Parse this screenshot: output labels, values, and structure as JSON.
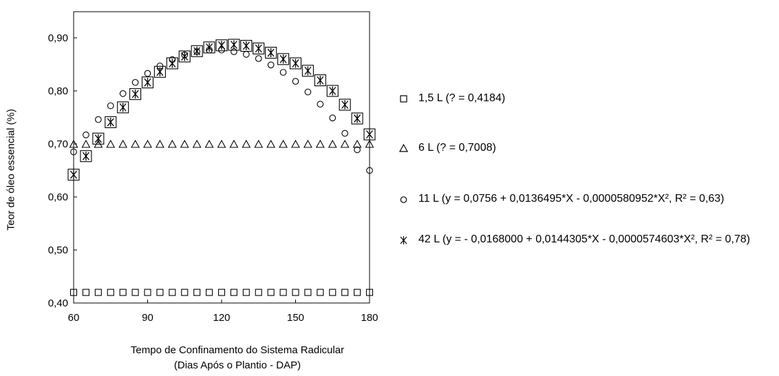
{
  "chart_data": {
    "type": "scatter",
    "xlabel_line1": "Tempo de Confinamento do Sistema Radicular",
    "xlabel_line2": "(Dias Após o Plantio - DAP)",
    "ylabel": "Teor de óleo essencial (%)",
    "xlim": [
      60,
      180
    ],
    "ylim": [
      0.4,
      0.95
    ],
    "xticks": [
      60,
      90,
      120,
      150,
      180
    ],
    "xtick_labels": [
      "60",
      "90",
      "120",
      "150",
      "180"
    ],
    "yticks": [
      0.4,
      0.5,
      0.6,
      0.7,
      0.8,
      0.9
    ],
    "ytick_labels": [
      "0,40",
      "0,50",
      "0,60",
      "0,70",
      "0,80",
      "0,90"
    ],
    "grid": false,
    "legend_position": "right",
    "x": [
      60,
      65,
      70,
      75,
      80,
      85,
      90,
      95,
      100,
      105,
      110,
      115,
      120,
      125,
      130,
      135,
      140,
      145,
      150,
      155,
      160,
      165,
      170,
      175,
      180
    ],
    "series": [
      {
        "name": "1,5 L (? = 0,4184)",
        "marker": "square",
        "values": [
          0.42,
          0.42,
          0.42,
          0.42,
          0.42,
          0.42,
          0.42,
          0.42,
          0.42,
          0.42,
          0.42,
          0.42,
          0.42,
          0.42,
          0.42,
          0.42,
          0.42,
          0.42,
          0.42,
          0.42,
          0.42,
          0.42,
          0.42,
          0.42,
          0.42
        ]
      },
      {
        "name": "6 L (? = 0,7008)",
        "marker": "triangle",
        "values": [
          0.7,
          0.7,
          0.7,
          0.7,
          0.7,
          0.7,
          0.7,
          0.7,
          0.7,
          0.7,
          0.7,
          0.7,
          0.7,
          0.7,
          0.7,
          0.7,
          0.7,
          0.7,
          0.7,
          0.7,
          0.7,
          0.7,
          0.7,
          0.7,
          0.7
        ]
      },
      {
        "name": "11 L (y = 0,0756 + 0,0136495*X - 0,0000580952*X², R² = 0,63)",
        "marker": "circle",
        "values": [
          0.685,
          0.717,
          0.746,
          0.772,
          0.795,
          0.816,
          0.833,
          0.847,
          0.859,
          0.868,
          0.874,
          0.877,
          0.877,
          0.874,
          0.869,
          0.861,
          0.849,
          0.835,
          0.818,
          0.798,
          0.775,
          0.749,
          0.72,
          0.689,
          0.65
        ]
      },
      {
        "name": "42 L (y = - 0,0168000 + 0,0144305*X - 0,0000574603*X², R² = 0,78)",
        "marker": "asterisk",
        "values": [
          0.642,
          0.677,
          0.71,
          0.741,
          0.769,
          0.794,
          0.816,
          0.836,
          0.852,
          0.865,
          0.875,
          0.882,
          0.886,
          0.887,
          0.885,
          0.88,
          0.872,
          0.86,
          0.852,
          0.838,
          0.82,
          0.8,
          0.774,
          0.748,
          0.718
        ]
      }
    ],
    "square_box_series_index": 3
  }
}
